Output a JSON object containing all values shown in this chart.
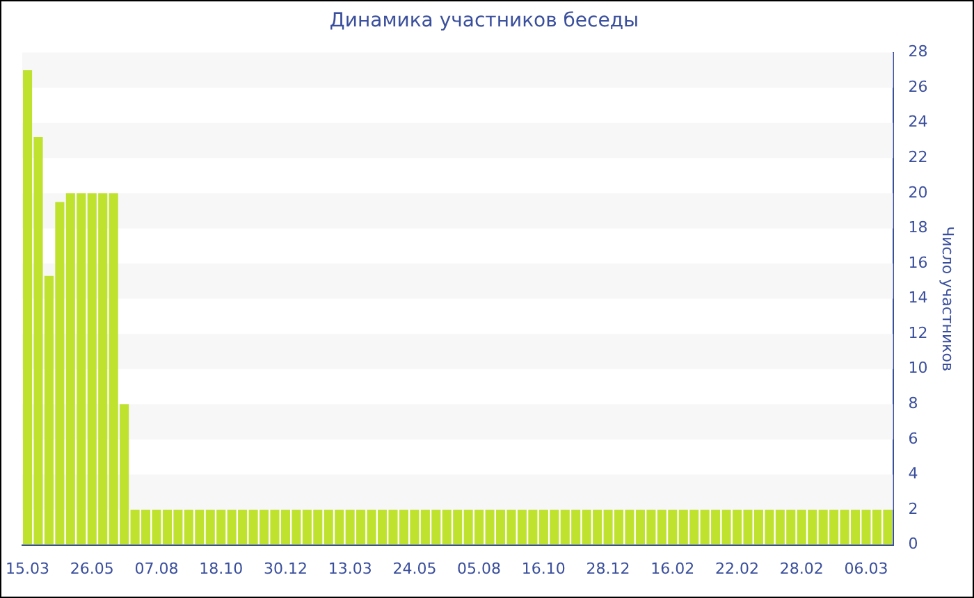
{
  "chart_data": {
    "type": "bar",
    "title": "Динамика участников беседы",
    "ylabel": "Число участников",
    "categories": [
      "15.03",
      null,
      null,
      null,
      null,
      null,
      "26.05",
      null,
      null,
      null,
      null,
      null,
      "07.08",
      null,
      null,
      null,
      null,
      null,
      "18.10",
      null,
      null,
      null,
      null,
      null,
      "30.12",
      null,
      null,
      null,
      null,
      null,
      "13.03",
      null,
      null,
      null,
      null,
      null,
      "24.05",
      null,
      null,
      null,
      null,
      null,
      "05.08",
      null,
      null,
      null,
      null,
      null,
      "16.10",
      null,
      null,
      null,
      null,
      null,
      "28.12",
      null,
      null,
      null,
      null,
      null,
      "16.02",
      null,
      null,
      null,
      null,
      null,
      "22.02",
      null,
      null,
      null,
      null,
      null,
      "28.02",
      null,
      null,
      null,
      null,
      null,
      "06.03",
      null,
      null
    ],
    "values": [
      27,
      23.2,
      15.3,
      19.5,
      20,
      20,
      20,
      20,
      20,
      8,
      2,
      2,
      2,
      2,
      2,
      2,
      2,
      2,
      2,
      2,
      2,
      2,
      2,
      2,
      2,
      2,
      2,
      2,
      2,
      2,
      2,
      2,
      2,
      2,
      2,
      2,
      2,
      2,
      2,
      2,
      2,
      2,
      2,
      2,
      2,
      2,
      2,
      2,
      2,
      2,
      2,
      2,
      2,
      2,
      2,
      2,
      2,
      2,
      2,
      2,
      2,
      2,
      2,
      2,
      2,
      2,
      2,
      2,
      2,
      2,
      2,
      2,
      2,
      2,
      2,
      2,
      2,
      2,
      2,
      2,
      2
    ],
    "color": "#bfe22f",
    "ylim": [
      0,
      28
    ],
    "yticks": [
      0,
      2,
      4,
      6,
      8,
      10,
      12,
      14,
      16,
      18,
      20,
      22,
      24,
      26,
      28
    ],
    "bands": [
      {
        "axis": "y",
        "from": 2,
        "to": 4,
        "color": "#f7f7f7"
      },
      {
        "axis": "y",
        "from": 6,
        "to": 8,
        "color": "#f7f7f7"
      },
      {
        "axis": "y",
        "from": 10,
        "to": 12,
        "color": "#f7f7f7"
      },
      {
        "axis": "y",
        "from": 14,
        "to": 16,
        "color": "#f7f7f7"
      },
      {
        "axis": "y",
        "from": 18,
        "to": 20,
        "color": "#f7f7f7"
      },
      {
        "axis": "y",
        "from": 22,
        "to": 24,
        "color": "#f7f7f7"
      },
      {
        "axis": "y",
        "from": 26,
        "to": 28,
        "color": "#f7f7f7"
      }
    ]
  }
}
